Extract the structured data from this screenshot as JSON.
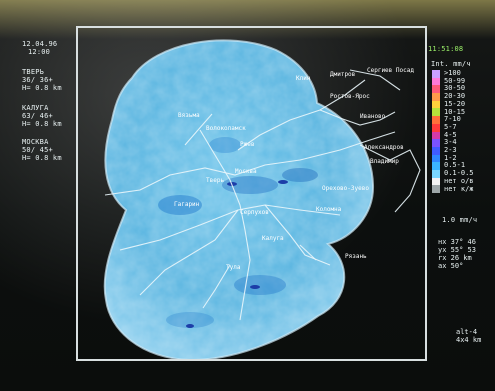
{
  "header": {
    "date": "12.04.96",
    "time": "12:00",
    "clock": "11:51:08"
  },
  "radars": [
    {
      "name": "ТВЕРЬ",
      "angles": "36/ 36+",
      "height": "H= 0.8 km"
    },
    {
      "name": "КАЛУГА",
      "angles": "63/ 46+",
      "height": "H= 0.8 km"
    },
    {
      "name": "МОСКВА",
      "angles": "50/ 45+",
      "height": "H= 0.8 km"
    }
  ],
  "legend": {
    "title": "Int. mm/ч",
    "items": [
      {
        "label": ">100",
        "color": "#c9a0ff"
      },
      {
        "label": "50-99",
        "color": "#ff7ad9"
      },
      {
        "label": "30-50",
        "color": "#ff5a7a"
      },
      {
        "label": "20-30",
        "color": "#ff9a4a"
      },
      {
        "label": "15-20",
        "color": "#ffd23c"
      },
      {
        "label": "10-15",
        "color": "#b6e23a"
      },
      {
        "label": "7-10",
        "color": "#ff6f3a"
      },
      {
        "label": "5-7",
        "color": "#ff3a3a"
      },
      {
        "label": "4-5",
        "color": "#d43aa8"
      },
      {
        "label": "3-4",
        "color": "#7a52ff"
      },
      {
        "label": "2-3",
        "color": "#3f5bff"
      },
      {
        "label": "1-2",
        "color": "#2f86ff"
      },
      {
        "label": "0.5-1",
        "color": "#3bb4ff"
      },
      {
        "label": "0.1-0.5",
        "color": "#7ad7ff"
      },
      {
        "label": "нет о/в",
        "color": "#f3f3f3"
      },
      {
        "label": "нет к/ж",
        "color": "#9ea7a9"
      }
    ]
  },
  "scale": "1.0 mm/ч",
  "cursor": {
    "lines": [
      "нх 37° 46",
      "ух 55° 53",
      "rх 26 km",
      "ах 50°"
    ]
  },
  "footer": {
    "lines": [
      "alt-4",
      "4x4 km"
    ]
  },
  "map": {
    "cities": [
      "Вязьма",
      "Волоколамск",
      "Клин",
      "Дмитров",
      "Сергиев Посад",
      "Ростов-Ярос",
      "Иваново",
      "Александров",
      "Владимир",
      "Орехово-Зуево",
      "Москва",
      "Коломна",
      "Серпухов",
      "Калуга",
      "Тула",
      "Рязань",
      "Гагарин",
      "Ржев",
      "Тверь"
    ]
  }
}
